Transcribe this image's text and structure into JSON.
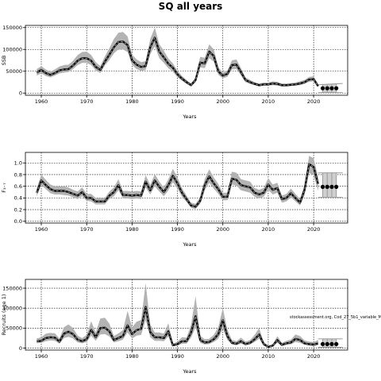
{
  "page": {
    "title": "SQ all years"
  },
  "chart_data": [
    {
      "type": "line",
      "id": "ssb",
      "title": "",
      "xlabel": "Years",
      "ylabel": "SSB",
      "xlim": [
        1956.5,
        2027.5
      ],
      "ylim": [
        -5000,
        155000
      ],
      "xticks": [
        1960,
        1970,
        1980,
        1990,
        2000,
        2010,
        2020
      ],
      "yticks": [
        0,
        50000,
        100000,
        150000
      ],
      "ytick_labels": [
        "0",
        "50000",
        "100000",
        "150000"
      ],
      "grid": true,
      "series": [
        {
          "x": [
            1959,
            1960,
            1961,
            1962,
            1963,
            1964,
            1965,
            1966,
            1967,
            1968,
            1969,
            1970,
            1971,
            1972,
            1973,
            1974,
            1975,
            1976,
            1977,
            1978,
            1979,
            1980,
            1981,
            1982,
            1983,
            1984,
            1985,
            1986,
            1987,
            1988,
            1989,
            1990,
            1991,
            1992,
            1993,
            1994,
            1995,
            1996,
            1997,
            1998,
            1999,
            2000,
            2001,
            2002,
            2003,
            2004,
            2005,
            2006,
            2007,
            2008,
            2009,
            2010,
            2011,
            2012,
            2013,
            2014,
            2015,
            2016,
            2017,
            2018,
            2019,
            2020,
            2021
          ],
          "values": [
            47000,
            53000,
            46000,
            42000,
            46000,
            52000,
            54000,
            55000,
            63000,
            74000,
            80000,
            80000,
            74000,
            60000,
            53000,
            72000,
            88000,
            105000,
            117000,
            118000,
            110000,
            75000,
            65000,
            60000,
            62000,
            105000,
            127000,
            95000,
            82000,
            67000,
            58000,
            43000,
            33000,
            25000,
            18000,
            30000,
            70000,
            68000,
            95000,
            85000,
            50000,
            40000,
            44000,
            64000,
            65000,
            48000,
            30000,
            25000,
            21000,
            18000,
            20000,
            20000,
            22000,
            21000,
            18000,
            18000,
            19000,
            20000,
            22000,
            25000,
            31000,
            32000,
            16000
          ],
          "lower": [
            40000,
            45000,
            39000,
            36000,
            40000,
            45000,
            47000,
            48000,
            55000,
            64000,
            69000,
            69000,
            64000,
            52000,
            46000,
            63000,
            76000,
            91000,
            100000,
            100000,
            94000,
            64000,
            55000,
            51000,
            53000,
            89000,
            107000,
            80000,
            69000,
            57000,
            49000,
            36000,
            28000,
            21000,
            15000,
            25000,
            59000,
            57000,
            80000,
            72000,
            42000,
            34000,
            37000,
            54000,
            55000,
            40000,
            25000,
            21000,
            18000,
            15000,
            17000,
            17000,
            18000,
            17000,
            15000,
            15000,
            16000,
            17000,
            18000,
            21000,
            26000,
            27000,
            13000
          ],
          "upper": [
            55000,
            62000,
            54000,
            49000,
            54000,
            61000,
            64000,
            65000,
            74000,
            87000,
            94000,
            95000,
            87000,
            71000,
            62000,
            84000,
            103000,
            124000,
            138000,
            140000,
            130000,
            88000,
            77000,
            71000,
            73000,
            124000,
            150000,
            112000,
            97000,
            79000,
            68000,
            51000,
            39000,
            30000,
            22000,
            36000,
            83000,
            81000,
            112000,
            100000,
            59000,
            47000,
            52000,
            75000,
            77000,
            57000,
            36000,
            30000,
            25000,
            22000,
            24000,
            24000,
            27000,
            26000,
            22000,
            22000,
            23000,
            24000,
            27000,
            30000,
            37000,
            38000,
            20000
          ]
        }
      ],
      "projection": {
        "x": [
          2022,
          2023,
          2024,
          2025
        ],
        "values": [
          11000,
          11000,
          11000,
          11000
        ],
        "lower": [
          1000,
          1000,
          1000,
          1000
        ],
        "upper": [
          19000,
          20000,
          21000,
          22000
        ]
      }
    },
    {
      "type": "line",
      "id": "f",
      "title": "",
      "xlabel": "Years",
      "ylabel": "F₃₋₇",
      "xlim": [
        1956.5,
        2027.5
      ],
      "ylim": [
        -0.03,
        1.18
      ],
      "xticks": [
        1960,
        1970,
        1980,
        1990,
        2000,
        2010,
        2020
      ],
      "yticks": [
        0.0,
        0.2,
        0.4,
        0.6,
        0.8,
        1.0
      ],
      "ytick_labels": [
        "0.0",
        "0.2",
        "0.4",
        "0.6",
        "0.8",
        "1.0"
      ],
      "grid": true,
      "series": [
        {
          "x": [
            1959,
            1960,
            1961,
            1962,
            1963,
            1964,
            1965,
            1966,
            1967,
            1968,
            1969,
            1970,
            1971,
            1972,
            1973,
            1974,
            1975,
            1976,
            1977,
            1978,
            1979,
            1980,
            1981,
            1982,
            1983,
            1984,
            1985,
            1986,
            1987,
            1988,
            1989,
            1990,
            1991,
            1992,
            1993,
            1994,
            1995,
            1996,
            1997,
            1998,
            1999,
            2000,
            2001,
            2002,
            2003,
            2004,
            2005,
            2006,
            2007,
            2008,
            2009,
            2010,
            2011,
            2012,
            2013,
            2014,
            2015,
            2016,
            2017,
            2018,
            2019,
            2020,
            2021
          ],
          "values": [
            0.49,
            0.7,
            0.62,
            0.55,
            0.52,
            0.52,
            0.52,
            0.5,
            0.47,
            0.44,
            0.5,
            0.4,
            0.4,
            0.34,
            0.34,
            0.34,
            0.44,
            0.5,
            0.62,
            0.45,
            0.45,
            0.44,
            0.45,
            0.44,
            0.68,
            0.53,
            0.7,
            0.59,
            0.5,
            0.62,
            0.78,
            0.65,
            0.49,
            0.38,
            0.27,
            0.25,
            0.35,
            0.62,
            0.77,
            0.65,
            0.55,
            0.42,
            0.42,
            0.73,
            0.71,
            0.62,
            0.6,
            0.58,
            0.49,
            0.46,
            0.49,
            0.63,
            0.54,
            0.57,
            0.38,
            0.4,
            0.48,
            0.4,
            0.32,
            0.54,
            0.98,
            0.93,
            0.64
          ],
          "lower": [
            0.43,
            0.62,
            0.55,
            0.48,
            0.46,
            0.46,
            0.45,
            0.44,
            0.41,
            0.38,
            0.43,
            0.35,
            0.34,
            0.29,
            0.29,
            0.29,
            0.38,
            0.43,
            0.53,
            0.39,
            0.39,
            0.38,
            0.39,
            0.38,
            0.58,
            0.46,
            0.6,
            0.51,
            0.43,
            0.53,
            0.67,
            0.56,
            0.42,
            0.33,
            0.23,
            0.21,
            0.3,
            0.53,
            0.66,
            0.56,
            0.47,
            0.36,
            0.36,
            0.63,
            0.61,
            0.53,
            0.51,
            0.49,
            0.42,
            0.39,
            0.42,
            0.54,
            0.46,
            0.49,
            0.32,
            0.34,
            0.41,
            0.34,
            0.27,
            0.45,
            0.83,
            0.79,
            0.52
          ],
          "upper": [
            0.56,
            0.8,
            0.71,
            0.63,
            0.6,
            0.6,
            0.6,
            0.58,
            0.54,
            0.51,
            0.58,
            0.47,
            0.47,
            0.4,
            0.4,
            0.4,
            0.51,
            0.58,
            0.72,
            0.52,
            0.52,
            0.51,
            0.52,
            0.51,
            0.79,
            0.62,
            0.81,
            0.68,
            0.58,
            0.72,
            0.9,
            0.75,
            0.57,
            0.44,
            0.32,
            0.3,
            0.41,
            0.72,
            0.89,
            0.75,
            0.64,
            0.49,
            0.49,
            0.85,
            0.83,
            0.72,
            0.7,
            0.68,
            0.57,
            0.54,
            0.57,
            0.74,
            0.63,
            0.66,
            0.44,
            0.47,
            0.56,
            0.47,
            0.38,
            0.63,
            1.12,
            1.08,
            0.76
          ]
        }
      ],
      "projection": {
        "x": [
          2022,
          2023,
          2024,
          2025
        ],
        "values": [
          0.59,
          0.59,
          0.59,
          0.59
        ],
        "lower": [
          0.41,
          0.41,
          0.41,
          0.41
        ],
        "upper": [
          0.83,
          0.83,
          0.83,
          0.83
        ]
      }
    },
    {
      "type": "line",
      "id": "recruits",
      "title": "",
      "xlabel": "Years",
      "ylabel": "Recruits (age 1)",
      "xlim": [
        1956.5,
        2027.5
      ],
      "ylim": [
        -5000,
        172000
      ],
      "xticks": [
        1960,
        1970,
        1980,
        1990,
        2000,
        2010,
        2020
      ],
      "yticks": [
        0,
        50000,
        100000,
        150000
      ],
      "ytick_labels": [
        "0",
        "50000",
        "100000",
        "150000"
      ],
      "grid": true,
      "annotation": "stockassessment.org, Cod_27_5b1_variable_M",
      "series": [
        {
          "x": [
            1959,
            1960,
            1961,
            1962,
            1963,
            1964,
            1965,
            1966,
            1967,
            1968,
            1969,
            1970,
            1971,
            1972,
            1973,
            1974,
            1975,
            1976,
            1977,
            1978,
            1979,
            1980,
            1981,
            1982,
            1983,
            1984,
            1985,
            1986,
            1987,
            1988,
            1989,
            1990,
            1991,
            1992,
            1993,
            1994,
            1995,
            1996,
            1997,
            1998,
            1999,
            2000,
            2001,
            2002,
            2003,
            2004,
            2005,
            2006,
            2007,
            2008,
            2009,
            2010,
            2011,
            2012,
            2013,
            2014,
            2015,
            2016,
            2017,
            2018,
            2019,
            2020,
            2021
          ],
          "values": [
            17000,
            18000,
            25000,
            27000,
            26000,
            16000,
            36000,
            41000,
            35000,
            21000,
            17000,
            22000,
            46000,
            27000,
            50000,
            51000,
            42000,
            20000,
            25000,
            30000,
            57000,
            35000,
            45000,
            48000,
            103000,
            40000,
            27000,
            27000,
            25000,
            42000,
            7000,
            10000,
            17000,
            17000,
            39000,
            80000,
            20000,
            14000,
            15000,
            22000,
            35000,
            70000,
            30000,
            13000,
            11000,
            17000,
            10000,
            13000,
            22000,
            34000,
            10000,
            3000,
            6000,
            20000,
            8000,
            12000,
            14000,
            23000,
            20000,
            12000,
            10000,
            9000,
            12000
          ],
          "lower": [
            12000,
            13000,
            17000,
            19000,
            18000,
            11000,
            25000,
            28000,
            24000,
            14000,
            12000,
            15000,
            31000,
            18000,
            34000,
            35000,
            29000,
            14000,
            17000,
            21000,
            39000,
            24000,
            31000,
            33000,
            70000,
            27000,
            18000,
            18000,
            17000,
            29000,
            4000,
            6000,
            11000,
            11000,
            26000,
            52000,
            13000,
            9000,
            10000,
            15000,
            23000,
            48000,
            20000,
            9000,
            7000,
            11000,
            7000,
            9000,
            15000,
            23000,
            6000,
            1000,
            4000,
            13000,
            5000,
            8000,
            9000,
            15000,
            13000,
            8000,
            6000,
            5000,
            7000
          ],
          "upper": [
            24000,
            27000,
            36000,
            38000,
            37000,
            24000,
            52000,
            59000,
            50000,
            31000,
            25000,
            33000,
            67000,
            39000,
            74000,
            76000,
            61000,
            30000,
            37000,
            45000,
            93000,
            52000,
            66000,
            70000,
            163000,
            59000,
            39000,
            39000,
            36000,
            62000,
            11000,
            16000,
            27000,
            26000,
            58000,
            130000,
            31000,
            22000,
            23000,
            33000,
            52000,
            100000,
            46000,
            20000,
            17000,
            26000,
            16000,
            20000,
            33000,
            50000,
            15000,
            6000,
            10000,
            30000,
            13000,
            18000,
            21000,
            34000,
            30000,
            19000,
            16000,
            15000,
            20000
          ]
        }
      ],
      "projection": {
        "x": [
          2022,
          2023,
          2024,
          2025
        ],
        "values": [
          10000,
          10000,
          10000,
          10000
        ],
        "lower": [
          2000,
          2000,
          2000,
          2000
        ],
        "upper": [
          23000,
          23000,
          23000,
          23000
        ]
      }
    }
  ]
}
